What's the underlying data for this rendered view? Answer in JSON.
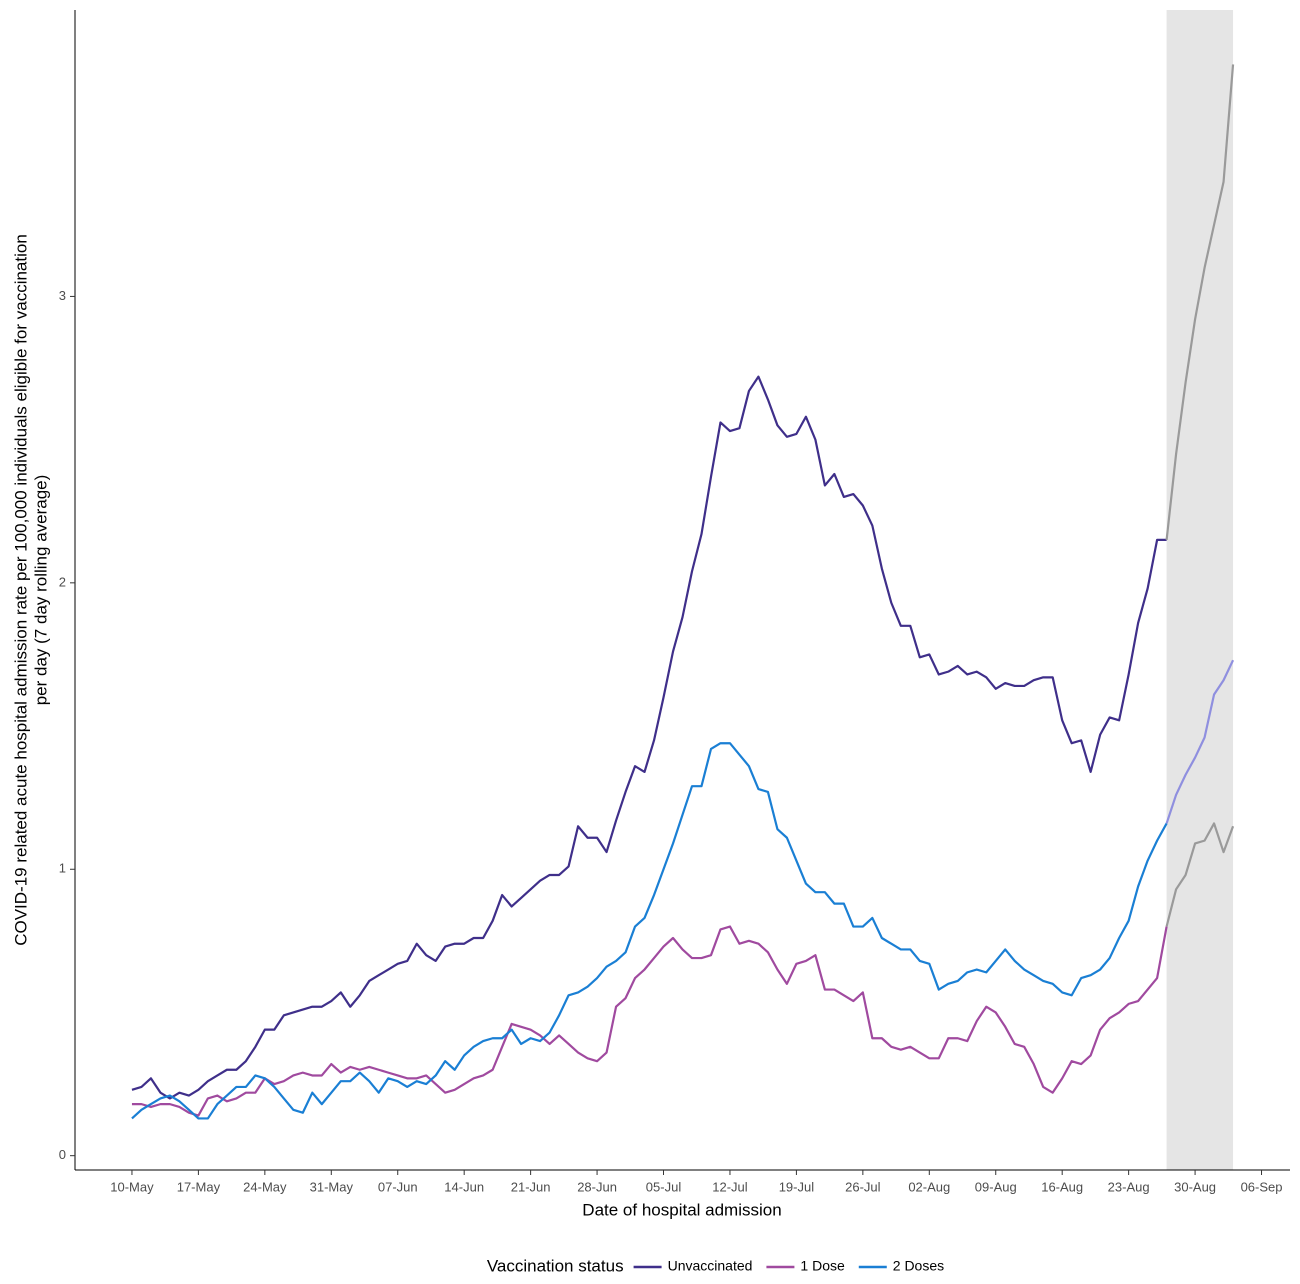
{
  "chart_data": {
    "type": "line",
    "xlabel": "Date of hospital admission",
    "ylabel": [
      "COVID-19 related acute hospital admission rate per 100,000 individuals eligible for vaccination",
      "per day (7 day rolling average)"
    ],
    "legend_title": "Vaccination status",
    "legend": "bottom",
    "grid": false,
    "x": [
      "10-May",
      "11-May",
      "12-May",
      "13-May",
      "14-May",
      "15-May",
      "16-May",
      "17-May",
      "18-May",
      "19-May",
      "20-May",
      "21-May",
      "22-May",
      "23-May",
      "24-May",
      "25-May",
      "26-May",
      "27-May",
      "28-May",
      "29-May",
      "30-May",
      "31-May",
      "01-Jun",
      "02-Jun",
      "03-Jun",
      "04-Jun",
      "05-Jun",
      "06-Jun",
      "07-Jun",
      "08-Jun",
      "09-Jun",
      "10-Jun",
      "11-Jun",
      "12-Jun",
      "13-Jun",
      "14-Jun",
      "15-Jun",
      "16-Jun",
      "17-Jun",
      "18-Jun",
      "19-Jun",
      "20-Jun",
      "21-Jun",
      "22-Jun",
      "23-Jun",
      "24-Jun",
      "25-Jun",
      "26-Jun",
      "27-Jun",
      "28-Jun",
      "29-Jun",
      "30-Jun",
      "01-Jul",
      "02-Jul",
      "03-Jul",
      "04-Jul",
      "05-Jul",
      "06-Jul",
      "07-Jul",
      "08-Jul",
      "09-Jul",
      "10-Jul",
      "11-Jul",
      "12-Jul",
      "13-Jul",
      "14-Jul",
      "15-Jul",
      "16-Jul",
      "17-Jul",
      "18-Jul",
      "19-Jul",
      "20-Jul",
      "21-Jul",
      "22-Jul",
      "23-Jul",
      "24-Jul",
      "25-Jul",
      "26-Jul",
      "27-Jul",
      "28-Jul",
      "29-Jul",
      "30-Jul",
      "31-Jul",
      "01-Aug",
      "02-Aug",
      "03-Aug",
      "04-Aug",
      "05-Aug",
      "06-Aug",
      "07-Aug",
      "08-Aug",
      "09-Aug",
      "10-Aug",
      "11-Aug",
      "12-Aug",
      "13-Aug",
      "14-Aug",
      "15-Aug",
      "16-Aug",
      "17-Aug",
      "18-Aug",
      "19-Aug",
      "20-Aug",
      "21-Aug",
      "22-Aug",
      "23-Aug",
      "24-Aug",
      "25-Aug",
      "26-Aug",
      "27-Aug",
      "28-Aug",
      "29-Aug",
      "30-Aug",
      "31-Aug",
      "01-Sep",
      "02-Sep",
      "03-Sep"
    ],
    "xlim": [
      "04-May",
      "09-Sep"
    ],
    "xticks": [
      "10-May",
      "17-May",
      "24-May",
      "31-May",
      "07-Jun",
      "14-Jun",
      "21-Jun",
      "28-Jun",
      "05-Jul",
      "12-Jul",
      "19-Jul",
      "26-Jul",
      "02-Aug",
      "09-Aug",
      "16-Aug",
      "23-Aug",
      "30-Aug",
      "06-Sep"
    ],
    "ylim": [
      -0.05,
      4.0
    ],
    "yticks": [
      0,
      1,
      2,
      3
    ],
    "shaded_region": [
      "27-Aug",
      "03-Sep"
    ],
    "shaded_region_color": "#e5e5e5",
    "series": [
      {
        "name": "Unvaccinated",
        "color": "#3f2f8a",
        "shaded_color": "#9a9a9a",
        "values": [
          0.23,
          0.24,
          0.27,
          0.22,
          0.2,
          0.22,
          0.21,
          0.23,
          0.26,
          0.28,
          0.3,
          0.3,
          0.33,
          0.38,
          0.44,
          0.44,
          0.49,
          0.5,
          0.51,
          0.52,
          0.52,
          0.54,
          0.57,
          0.52,
          0.56,
          0.61,
          0.63,
          0.65,
          0.67,
          0.68,
          0.74,
          0.7,
          0.68,
          0.73,
          0.74,
          0.74,
          0.76,
          0.76,
          0.82,
          0.91,
          0.87,
          0.9,
          0.93,
          0.96,
          0.98,
          0.98,
          1.01,
          1.15,
          1.11,
          1.11,
          1.06,
          1.17,
          1.27,
          1.36,
          1.34,
          1.45,
          1.6,
          1.76,
          1.88,
          2.04,
          2.17,
          2.37,
          2.56,
          2.53,
          2.54,
          2.67,
          2.72,
          2.64,
          2.55,
          2.51,
          2.52,
          2.58,
          2.5,
          2.34,
          2.38,
          2.3,
          2.31,
          2.27,
          2.2,
          2.05,
          1.93,
          1.85,
          1.85,
          1.74,
          1.75,
          1.68,
          1.69,
          1.71,
          1.68,
          1.69,
          1.67,
          1.63,
          1.65,
          1.64,
          1.64,
          1.66,
          1.67,
          1.67,
          1.52,
          1.44,
          1.45,
          1.34,
          1.47,
          1.53,
          1.52,
          1.68,
          1.86,
          1.98,
          2.15,
          2.15,
          2.45,
          2.7,
          2.92,
          3.1,
          3.25,
          3.4,
          3.81
        ]
      },
      {
        "name": "1 Dose",
        "color": "#a04a9f",
        "shaded_color": "#9a9a9a",
        "values": [
          0.18,
          0.18,
          0.17,
          0.18,
          0.18,
          0.17,
          0.15,
          0.14,
          0.2,
          0.21,
          0.19,
          0.2,
          0.22,
          0.22,
          0.27,
          0.25,
          0.26,
          0.28,
          0.29,
          0.28,
          0.28,
          0.32,
          0.29,
          0.31,
          0.3,
          0.31,
          0.3,
          0.29,
          0.28,
          0.27,
          0.27,
          0.28,
          0.25,
          0.22,
          0.23,
          0.25,
          0.27,
          0.28,
          0.3,
          0.38,
          0.46,
          0.45,
          0.44,
          0.42,
          0.39,
          0.42,
          0.39,
          0.36,
          0.34,
          0.33,
          0.36,
          0.52,
          0.55,
          0.62,
          0.65,
          0.69,
          0.73,
          0.76,
          0.72,
          0.69,
          0.69,
          0.7,
          0.79,
          0.8,
          0.74,
          0.75,
          0.74,
          0.71,
          0.65,
          0.6,
          0.67,
          0.68,
          0.7,
          0.58,
          0.58,
          0.56,
          0.54,
          0.57,
          0.41,
          0.41,
          0.38,
          0.37,
          0.38,
          0.36,
          0.34,
          0.34,
          0.41,
          0.41,
          0.4,
          0.47,
          0.52,
          0.5,
          0.45,
          0.39,
          0.38,
          0.32,
          0.24,
          0.22,
          0.27,
          0.33,
          0.32,
          0.35,
          0.44,
          0.48,
          0.5,
          0.53,
          0.54,
          0.58,
          0.62,
          0.8,
          0.93,
          0.98,
          1.09,
          1.1,
          1.16,
          1.06,
          1.15
        ]
      },
      {
        "name": "2 Doses",
        "color": "#1a7fd4",
        "shaded_color": "#8f8fdf",
        "values": [
          0.13,
          0.16,
          0.18,
          0.2,
          0.21,
          0.19,
          0.16,
          0.13,
          0.13,
          0.18,
          0.21,
          0.24,
          0.24,
          0.28,
          0.27,
          0.24,
          0.2,
          0.16,
          0.15,
          0.22,
          0.18,
          0.22,
          0.26,
          0.26,
          0.29,
          0.26,
          0.22,
          0.27,
          0.26,
          0.24,
          0.26,
          0.25,
          0.28,
          0.33,
          0.3,
          0.35,
          0.38,
          0.4,
          0.41,
          0.41,
          0.44,
          0.39,
          0.41,
          0.4,
          0.43,
          0.49,
          0.56,
          0.57,
          0.59,
          0.62,
          0.66,
          0.68,
          0.71,
          0.8,
          0.83,
          0.91,
          1.0,
          1.09,
          1.19,
          1.29,
          1.29,
          1.42,
          1.44,
          1.44,
          1.4,
          1.36,
          1.28,
          1.27,
          1.14,
          1.11,
          1.03,
          0.95,
          0.92,
          0.92,
          0.88,
          0.88,
          0.8,
          0.8,
          0.83,
          0.76,
          0.74,
          0.72,
          0.72,
          0.68,
          0.67,
          0.58,
          0.6,
          0.61,
          0.64,
          0.65,
          0.64,
          0.68,
          0.72,
          0.68,
          0.65,
          0.63,
          0.61,
          0.6,
          0.57,
          0.56,
          0.62,
          0.63,
          0.65,
          0.69,
          0.76,
          0.82,
          0.94,
          1.03,
          1.1,
          1.16,
          1.26,
          1.33,
          1.39,
          1.46,
          1.61,
          1.66,
          1.73
        ]
      }
    ]
  }
}
